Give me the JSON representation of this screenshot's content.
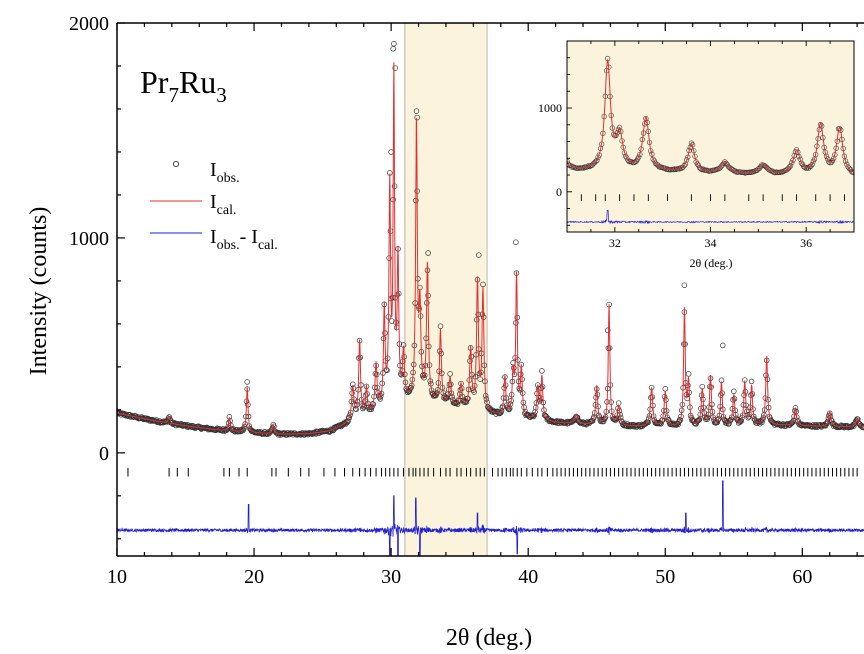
{
  "chart_data": {
    "type": "scatter",
    "title": "",
    "annotation": {
      "main": "Pr",
      "sub1": "7",
      "mid": "Ru",
      "sub2": "3"
    },
    "xlabel": "2θ  (deg.)",
    "ylabel": "Intensity (counts)",
    "xlim": [
      10,
      64.5
    ],
    "ylim": [
      -480,
      2000
    ],
    "x_ticks": [
      10,
      20,
      30,
      40,
      50,
      60
    ],
    "y_ticks": [
      0,
      1000,
      2000
    ],
    "highlight_region": {
      "x": [
        31.0,
        37.0
      ],
      "color": "#fbf3dc"
    },
    "background": [
      [
        10,
        185
      ],
      [
        12,
        158
      ],
      [
        14,
        135
      ],
      [
        16,
        117
      ],
      [
        18,
        102
      ],
      [
        20,
        92
      ],
      [
        22,
        86
      ],
      [
        24,
        88
      ],
      [
        25.5,
        100
      ],
      [
        26.5,
        125
      ],
      [
        28,
        160
      ],
      [
        30,
        215
      ],
      [
        32,
        250
      ],
      [
        34,
        215
      ],
      [
        36,
        190
      ],
      [
        38,
        170
      ],
      [
        40,
        155
      ],
      [
        42,
        140
      ],
      [
        44,
        132
      ],
      [
        46,
        126
      ],
      [
        48,
        122
      ],
      [
        50,
        120
      ],
      [
        52,
        122
      ],
      [
        54,
        125
      ],
      [
        56,
        128
      ],
      [
        58,
        128
      ],
      [
        60,
        125
      ],
      [
        62,
        122
      ],
      [
        64.5,
        120
      ]
    ],
    "peaks": [
      [
        13.8,
        30,
        0.08
      ],
      [
        18.2,
        60,
        0.08
      ],
      [
        19.5,
        210,
        0.07
      ],
      [
        21.4,
        40,
        0.08
      ],
      [
        27.2,
        160,
        0.1
      ],
      [
        27.7,
        360,
        0.08
      ],
      [
        28.2,
        130,
        0.08
      ],
      [
        28.9,
        220,
        0.09
      ],
      [
        29.5,
        450,
        0.07
      ],
      [
        29.9,
        1000,
        0.07
      ],
      [
        30.2,
        1500,
        0.06
      ],
      [
        30.5,
        650,
        0.07
      ],
      [
        30.9,
        220,
        0.08
      ],
      [
        31.85,
        1280,
        0.07
      ],
      [
        32.1,
        400,
        0.08
      ],
      [
        32.65,
        630,
        0.08
      ],
      [
        33.6,
        340,
        0.08
      ],
      [
        34.3,
        130,
        0.1
      ],
      [
        35.1,
        110,
        0.1
      ],
      [
        35.8,
        280,
        0.09
      ],
      [
        36.3,
        600,
        0.08
      ],
      [
        36.7,
        560,
        0.08
      ],
      [
        38.3,
        180,
        0.08
      ],
      [
        38.9,
        190,
        0.08
      ],
      [
        39.15,
        660,
        0.07
      ],
      [
        39.5,
        220,
        0.08
      ],
      [
        40.7,
        150,
        0.09
      ],
      [
        41.0,
        200,
        0.08
      ],
      [
        43.5,
        40,
        0.12
      ],
      [
        45.0,
        180,
        0.09
      ],
      [
        45.9,
        560,
        0.07
      ],
      [
        46.6,
        90,
        0.1
      ],
      [
        49.0,
        180,
        0.1
      ],
      [
        50.0,
        160,
        0.1
      ],
      [
        51.4,
        540,
        0.07
      ],
      [
        51.7,
        200,
        0.08
      ],
      [
        52.7,
        170,
        0.09
      ],
      [
        53.3,
        230,
        0.08
      ],
      [
        54.1,
        200,
        0.08
      ],
      [
        55.0,
        140,
        0.09
      ],
      [
        55.8,
        200,
        0.08
      ],
      [
        56.3,
        180,
        0.08
      ],
      [
        57.4,
        320,
        0.08
      ],
      [
        59.5,
        80,
        0.1
      ],
      [
        62.0,
        70,
        0.1
      ],
      [
        64.0,
        40,
        0.1
      ]
    ],
    "outliers": [
      [
        30.15,
        1880
      ],
      [
        30.3,
        1790
      ],
      [
        31.9,
        1560
      ],
      [
        30.0,
        1400
      ],
      [
        32.7,
        930
      ],
      [
        39.1,
        980
      ],
      [
        36.4,
        920
      ],
      [
        51.4,
        780
      ],
      [
        54.2,
        500
      ],
      [
        19.5,
        330
      ],
      [
        45.8,
        570
      ]
    ],
    "bragg_positions": [
      10.8,
      13.8,
      14.4,
      15.2,
      17.8,
      18.2,
      18.9,
      19.5,
      21.3,
      21.6,
      22.5,
      23.4,
      24.0,
      25.1,
      25.9,
      26.6,
      27.2,
      27.7,
      28.1,
      28.5,
      28.9,
      29.3,
      29.6,
      29.9,
      30.2,
      30.5,
      30.9,
      31.3,
      31.6,
      31.8,
      32.1,
      32.4,
      32.7,
      33.1,
      33.6,
      34.0,
      34.3,
      34.8,
      35.1,
      35.5,
      35.8,
      36.2,
      36.5,
      36.8,
      37.4,
      37.8,
      38.1,
      38.4,
      38.7,
      38.9,
      39.2,
      39.5,
      39.9,
      40.3,
      40.7,
      41.0,
      41.4,
      41.8,
      42.1,
      42.4,
      42.7,
      43.0,
      43.3,
      43.6,
      43.9,
      44.2,
      44.5,
      44.8,
      45.1,
      45.4,
      45.7,
      46.0,
      46.3,
      46.6,
      46.9,
      47.2,
      47.5,
      47.8,
      48.1,
      48.4,
      48.7,
      49.0,
      49.3,
      49.6,
      49.9,
      50.2,
      50.5,
      50.8,
      51.1,
      51.4,
      51.7,
      52.0,
      52.3,
      52.6,
      52.9,
      53.2,
      53.5,
      53.8,
      54.1,
      54.4,
      54.7,
      55.0,
      55.3,
      55.6,
      55.9,
      56.2,
      56.5,
      56.8,
      57.1,
      57.4,
      57.7,
      58.0,
      58.3,
      58.6,
      58.9,
      59.2,
      59.5,
      59.8,
      60.1,
      60.4,
      60.7,
      61.0,
      61.3,
      61.6,
      61.9,
      62.2,
      62.5,
      62.8,
      63.1,
      63.4,
      63.7,
      64.0
    ],
    "bragg_marks_y": [
      -70,
      -110
    ],
    "difference_offset": -360,
    "difference_spikes": [
      [
        19.6,
        120
      ],
      [
        29.9,
        -120
      ],
      [
        30.2,
        160
      ],
      [
        30.5,
        -170
      ],
      [
        31.8,
        150
      ],
      [
        32.1,
        -140
      ],
      [
        36.3,
        80
      ],
      [
        39.2,
        -110
      ],
      [
        51.5,
        80
      ],
      [
        54.2,
        230
      ]
    ],
    "legend": {
      "position": "upper-left",
      "items": [
        {
          "label": "I",
          "sub": "obs.",
          "color": "#333333",
          "marker": "circle"
        },
        {
          "label": "I",
          "sub": "cal.",
          "color": "#e03030",
          "marker": "line"
        },
        {
          "label": "I",
          "sub": "obs.",
          "label2": "- I",
          "sub2": "cal.",
          "color": "#2020d0",
          "marker": "line"
        }
      ]
    },
    "inset": {
      "xlabel": "2θ  (deg.)",
      "xlim": [
        31.0,
        37.0
      ],
      "ylim": [
        -480,
        1800
      ],
      "x_ticks": [
        32,
        34,
        36
      ],
      "y_ticks": [
        0,
        1000
      ],
      "background_color": "#fbf3dc"
    },
    "colors": {
      "obs": "#333333",
      "calc": "#e03030",
      "diff": "#2020d0",
      "bragg": "#000000",
      "highlight": "#fbf3dc",
      "highlight_border": "#bdb7aa"
    }
  }
}
